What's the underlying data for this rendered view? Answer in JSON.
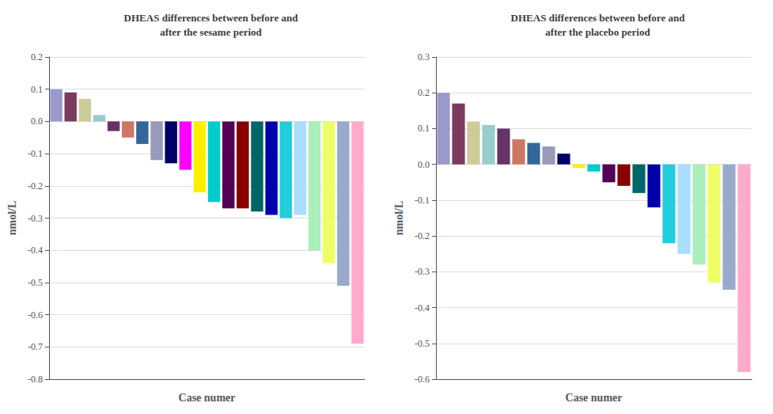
{
  "chart_data": [
    {
      "type": "bar",
      "title": "DHEAS differences between before and\nafter the sesame period",
      "x_label": "Case numer",
      "y_label": "nmol/L",
      "categories": [
        null,
        null,
        null,
        null,
        null,
        null,
        null,
        null,
        null,
        null,
        null,
        null,
        null,
        null,
        null,
        null,
        null,
        null,
        null,
        null,
        null,
        null
      ],
      "values": [
        0.1,
        0.09,
        0.07,
        0.02,
        -0.03,
        -0.05,
        -0.07,
        -0.12,
        -0.13,
        -0.15,
        -0.22,
        -0.25,
        -0.27,
        -0.27,
        -0.28,
        -0.29,
        -0.3,
        -0.29,
        -0.4,
        -0.44,
        -0.51,
        -0.69
      ],
      "colors": [
        "#9999cc",
        "#7b3b5e",
        "#cccc99",
        "#99cccc",
        "#663366",
        "#cc7766",
        "#336699",
        "#9999bb",
        "#000066",
        "#ff00ff",
        "#ffee00",
        "#00cccc",
        "#550055",
        "#880000",
        "#006666",
        "#0000aa",
        "#22ccdd",
        "#aaddff",
        "#aaeebb",
        "#eeff66",
        "#99aacc",
        "#ffaacc"
      ],
      "ylim": [
        -0.8,
        0.2
      ],
      "yticks": [
        -0.8,
        -0.7,
        -0.6,
        -0.5,
        -0.4,
        -0.3,
        -0.2,
        -0.1,
        {
          "value": 0,
          "label": "0.0"
        },
        0.1,
        0.2
      ],
      "grid": true,
      "tick_labels": "y"
    },
    {
      "type": "bar",
      "title": "DHEAS differences between before and\nafter the placebo period",
      "x_label": "Case numer",
      "y_label": "nmol/L",
      "categories": [
        null,
        null,
        null,
        null,
        null,
        null,
        null,
        null,
        null,
        null,
        null,
        null,
        null,
        null,
        null,
        null,
        null,
        null,
        null,
        null,
        null
      ],
      "values": [
        0.2,
        0.17,
        0.12,
        0.11,
        0.1,
        0.07,
        0.06,
        0.05,
        0.03,
        -0.01,
        -0.02,
        -0.05,
        -0.06,
        -0.08,
        -0.12,
        -0.22,
        -0.25,
        -0.28,
        -0.33,
        -0.35,
        -0.58
      ],
      "colors": [
        "#9999cc",
        "#7b3b5e",
        "#cccc99",
        "#99cccc",
        "#663366",
        "#cc7766",
        "#336699",
        "#9999bb",
        "#000066",
        "#ffee00",
        "#00cccc",
        "#550055",
        "#880000",
        "#006666",
        "#0000aa",
        "#22ccdd",
        "#aaddff",
        "#aaeebb",
        "#eeff66",
        "#99aacc",
        "#ffaacc"
      ],
      "ylim": [
        -0.6,
        0.3
      ],
      "yticks": [
        -0.6,
        -0.5,
        -0.4,
        -0.3,
        -0.2,
        -0.1,
        {
          "value": 0,
          "label": "0.0"
        },
        0.1,
        0.2,
        0.3
      ],
      "grid": true,
      "tick_labels": "y"
    }
  ]
}
